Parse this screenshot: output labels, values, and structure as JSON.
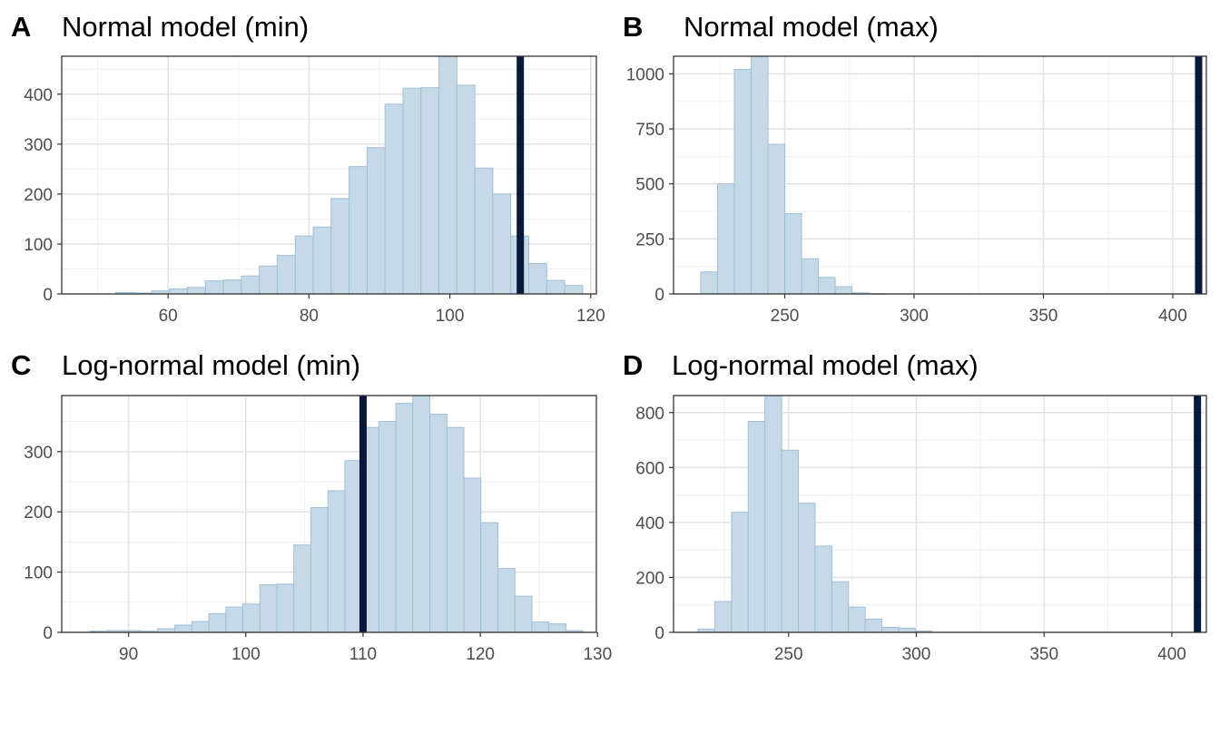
{
  "chart_data": [
    {
      "type": "bar",
      "tag": "A",
      "title": "Normal model (min)",
      "xlabel": "",
      "ylabel": "",
      "x_start": 44.9,
      "bin_width": 2.55,
      "values": [
        0,
        0,
        0,
        3,
        2,
        6,
        10,
        13,
        26,
        28,
        36,
        56,
        77,
        116,
        134,
        191,
        255,
        293,
        380,
        412,
        413,
        480,
        418,
        252,
        200,
        116,
        61,
        27,
        17
      ],
      "observed": 110,
      "xlim": [
        44.9,
        120.8
      ],
      "ylim": [
        0,
        476
      ],
      "xticks": [
        "60",
        "80",
        "100",
        "120"
      ],
      "yticks": [
        "0",
        "100",
        "200",
        "300",
        "400"
      ],
      "grid": true,
      "colors": {
        "bar_fill": "#c6d9e7",
        "bar_stroke": "#9fbfd8",
        "line": "#08183b"
      }
    },
    {
      "type": "bar",
      "tag": "B",
      "title": "Normal model (max)",
      "xlabel": "",
      "ylabel": "",
      "x_start": 217.5,
      "bin_width": 6.5,
      "values": [
        100,
        500,
        1020,
        1080,
        680,
        365,
        160,
        75,
        33,
        5,
        2,
        0,
        0,
        0,
        0,
        0,
        0,
        0,
        0,
        0,
        0,
        0,
        0,
        0,
        0,
        0,
        0,
        0,
        0
      ],
      "observed": 410,
      "xlim": [
        207,
        413
      ],
      "ylim": [
        0,
        1080
      ],
      "xticks": [
        "250",
        "300",
        "350",
        "400"
      ],
      "yticks": [
        "0",
        "250",
        "500",
        "750",
        "1000"
      ],
      "grid": true,
      "colors": {
        "bar_fill": "#c6d9e7",
        "bar_stroke": "#9fbfd8",
        "line": "#08183b"
      }
    },
    {
      "type": "bar",
      "tag": "C",
      "title": "Log-normal model (min)",
      "xlabel": "",
      "ylabel": "",
      "x_start": 86.7,
      "bin_width": 1.45,
      "values": [
        2,
        3,
        3,
        2,
        6,
        12,
        18,
        31,
        42,
        47,
        79,
        80,
        145,
        207,
        235,
        285,
        340,
        350,
        380,
        393,
        362,
        340,
        256,
        182,
        106,
        60,
        17,
        14,
        3
      ],
      "observed": 110,
      "xlim": [
        84.3,
        129.9
      ],
      "ylim": [
        0,
        393
      ],
      "xticks": [
        "90",
        "100",
        "110",
        "120",
        "130"
      ],
      "yticks": [
        "0",
        "100",
        "200",
        "300"
      ],
      "grid": true,
      "colors": {
        "bar_fill": "#c6d9e7",
        "bar_stroke": "#9fbfd8",
        "line": "#08183b"
      }
    },
    {
      "type": "bar",
      "tag": "D",
      "title": "Log-normal model (max)",
      "xlabel": "",
      "ylabel": "",
      "x_start": 214.6,
      "bin_width": 6.54,
      "values": [
        12,
        112,
        437,
        768,
        862,
        663,
        470,
        314,
        184,
        92,
        48,
        18,
        15,
        5,
        0,
        0,
        0,
        0,
        0,
        0,
        0,
        0,
        0,
        0,
        0,
        0,
        0,
        0,
        0
      ],
      "observed": 410,
      "xlim": [
        205,
        413.5
      ],
      "ylim": [
        0,
        862
      ],
      "xticks": [
        "250",
        "300",
        "350",
        "400"
      ],
      "yticks": [
        "0",
        "200",
        "400",
        "600",
        "800"
      ],
      "grid": true,
      "colors": {
        "bar_fill": "#c6d9e7",
        "bar_stroke": "#9fbfd8",
        "line": "#08183b"
      }
    }
  ]
}
